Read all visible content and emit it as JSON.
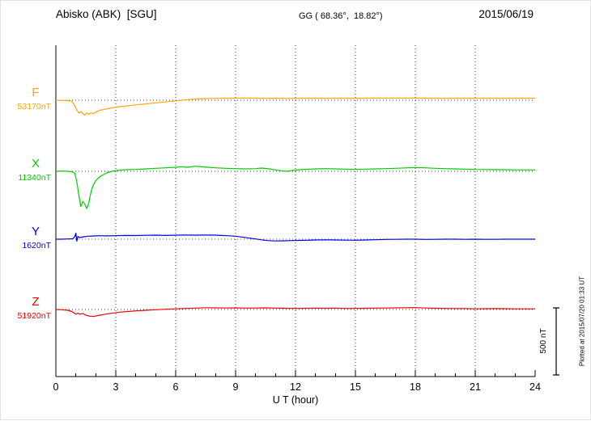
{
  "header": {
    "station": "Abisko (ABK)  [SGU]",
    "coords": "GG ( 68.36°,  18.82°)",
    "date": "2015/06/19"
  },
  "axis": {
    "xlabel": "U T (hour)"
  },
  "scale": {
    "label": "500 nT"
  },
  "footer_note": "Plotted at 2015/07/20 01:33 UT",
  "chart_data": {
    "type": "line",
    "title": "Abisko (ABK) [SGU] magnetogram",
    "date": "2015/06/19",
    "xlabel": "U T (hour)",
    "x_range": [
      0,
      24
    ],
    "x_ticks": [
      0,
      3,
      6,
      9,
      12,
      15,
      18,
      21,
      24
    ],
    "grid": "dotted vertical lines every 3 h, dotted horizontal baseline per component",
    "scale_bar_nT": 500,
    "y_unit": "nT offset from baseline",
    "series": [
      {
        "name": "F",
        "baseline_label": "53170nT",
        "color": "#FFA500",
        "points": [
          [
            0,
            0
          ],
          [
            0.3,
            -2
          ],
          [
            0.6,
            -3
          ],
          [
            0.8,
            -8
          ],
          [
            0.95,
            -40
          ],
          [
            1.05,
            -75
          ],
          [
            1.15,
            -95
          ],
          [
            1.25,
            -85
          ],
          [
            1.35,
            -100
          ],
          [
            1.45,
            -112
          ],
          [
            1.55,
            -95
          ],
          [
            1.65,
            -105
          ],
          [
            1.75,
            -95
          ],
          [
            1.9,
            -100
          ],
          [
            2.05,
            -85
          ],
          [
            2.2,
            -75
          ],
          [
            2.4,
            -70
          ],
          [
            2.7,
            -60
          ],
          [
            3.0,
            -52
          ],
          [
            3.4,
            -45
          ],
          [
            3.8,
            -38
          ],
          [
            4.2,
            -32
          ],
          [
            4.6,
            -26
          ],
          [
            5.0,
            -20
          ],
          [
            5.4,
            -14
          ],
          [
            5.8,
            -8
          ],
          [
            6.2,
            -2
          ],
          [
            6.6,
            4
          ],
          [
            7.0,
            9
          ],
          [
            7.5,
            12
          ],
          [
            8,
            14
          ],
          [
            8.5,
            15
          ],
          [
            9,
            15
          ],
          [
            9.5,
            16
          ],
          [
            10,
            15
          ],
          [
            10.5,
            14
          ],
          [
            11,
            15
          ],
          [
            11.5,
            13
          ],
          [
            12,
            14
          ],
          [
            12.5,
            15
          ],
          [
            13,
            15
          ],
          [
            13.5,
            14
          ],
          [
            14,
            15
          ],
          [
            14.5,
            15
          ],
          [
            15,
            14
          ],
          [
            15.5,
            15
          ],
          [
            16,
            16
          ],
          [
            16.5,
            15
          ],
          [
            17,
            16
          ],
          [
            17.5,
            15
          ],
          [
            18,
            16
          ],
          [
            18.5,
            15
          ],
          [
            19,
            15
          ],
          [
            19.5,
            14
          ],
          [
            20,
            15
          ],
          [
            20.5,
            15
          ],
          [
            21,
            14
          ],
          [
            21.5,
            15
          ],
          [
            22,
            15
          ],
          [
            22.5,
            14
          ],
          [
            23,
            15
          ],
          [
            23.5,
            15
          ],
          [
            24,
            15
          ]
        ]
      },
      {
        "name": "X",
        "baseline_label": "11340nT",
        "color": "#00CC00",
        "points": [
          [
            0,
            0
          ],
          [
            0.3,
            2
          ],
          [
            0.6,
            0
          ],
          [
            0.8,
            -3
          ],
          [
            0.95,
            -15
          ],
          [
            1.05,
            -80
          ],
          [
            1.15,
            -180
          ],
          [
            1.25,
            -262
          ],
          [
            1.35,
            -225
          ],
          [
            1.45,
            -245
          ],
          [
            1.55,
            -278
          ],
          [
            1.65,
            -235
          ],
          [
            1.75,
            -160
          ],
          [
            1.85,
            -110
          ],
          [
            2.0,
            -70
          ],
          [
            2.2,
            -40
          ],
          [
            2.5,
            -15
          ],
          [
            2.8,
            0
          ],
          [
            3.1,
            8
          ],
          [
            3.5,
            12
          ],
          [
            4,
            14
          ],
          [
            4.5,
            18
          ],
          [
            5,
            22
          ],
          [
            5.5,
            26
          ],
          [
            6,
            30
          ],
          [
            6.3,
            34
          ],
          [
            6.6,
            30
          ],
          [
            7,
            38
          ],
          [
            7.3,
            34
          ],
          [
            7.6,
            30
          ],
          [
            8,
            26
          ],
          [
            8.5,
            22
          ],
          [
            9,
            20
          ],
          [
            9.5,
            18
          ],
          [
            10,
            20
          ],
          [
            10.3,
            24
          ],
          [
            10.7,
            18
          ],
          [
            11,
            10
          ],
          [
            11.3,
            4
          ],
          [
            11.6,
            0
          ],
          [
            11.9,
            8
          ],
          [
            12.2,
            12
          ],
          [
            12.6,
            15
          ],
          [
            13,
            18
          ],
          [
            13.5,
            20
          ],
          [
            14,
            18
          ],
          [
            14.5,
            16
          ],
          [
            15,
            14
          ],
          [
            15.5,
            16
          ],
          [
            16,
            18
          ],
          [
            16.5,
            20
          ],
          [
            17,
            22
          ],
          [
            17.5,
            25
          ],
          [
            18,
            28
          ],
          [
            18.5,
            26
          ],
          [
            19,
            22
          ],
          [
            19.5,
            20
          ],
          [
            20,
            18
          ],
          [
            20.5,
            16
          ],
          [
            21,
            14
          ],
          [
            21.5,
            13
          ],
          [
            22,
            12
          ],
          [
            22.5,
            12
          ],
          [
            23,
            10
          ],
          [
            23.5,
            10
          ],
          [
            24,
            10
          ]
        ]
      },
      {
        "name": "Y",
        "baseline_label": "1620nT",
        "color": "#0000DD",
        "points": [
          [
            0,
            0
          ],
          [
            0.3,
            0
          ],
          [
            0.6,
            2
          ],
          [
            0.85,
            3
          ],
          [
            0.95,
            20
          ],
          [
            1.0,
            45
          ],
          [
            1.05,
            -15
          ],
          [
            1.1,
            20
          ],
          [
            1.2,
            12
          ],
          [
            1.4,
            18
          ],
          [
            1.6,
            22
          ],
          [
            1.9,
            24
          ],
          [
            2.2,
            26
          ],
          [
            2.5,
            25
          ],
          [
            3,
            26
          ],
          [
            3.5,
            28
          ],
          [
            4,
            27
          ],
          [
            4.5,
            29
          ],
          [
            5,
            30
          ],
          [
            5.5,
            28
          ],
          [
            6,
            30
          ],
          [
            6.5,
            31
          ],
          [
            7,
            30
          ],
          [
            7.5,
            31
          ],
          [
            8,
            30
          ],
          [
            8.3,
            28
          ],
          [
            8.6,
            26
          ],
          [
            9,
            22
          ],
          [
            9.3,
            16
          ],
          [
            9.6,
            10
          ],
          [
            10,
            2
          ],
          [
            10.3,
            -5
          ],
          [
            10.6,
            -10
          ],
          [
            11,
            -13
          ],
          [
            11.4,
            -12
          ],
          [
            11.8,
            -10
          ],
          [
            12.2,
            -9
          ],
          [
            12.6,
            -8
          ],
          [
            13,
            -6
          ],
          [
            13.5,
            -5
          ],
          [
            14,
            -6
          ],
          [
            14.5,
            -7
          ],
          [
            15,
            -8
          ],
          [
            15.5,
            -6
          ],
          [
            16,
            -4
          ],
          [
            16.5,
            -2
          ],
          [
            17,
            -1
          ],
          [
            17.5,
            0
          ],
          [
            18,
            0
          ],
          [
            18.5,
            -2
          ],
          [
            19,
            -1
          ],
          [
            19.5,
            0
          ],
          [
            20,
            0
          ],
          [
            20.5,
            -1
          ],
          [
            21,
            0
          ],
          [
            21.5,
            -1
          ],
          [
            22,
            -1
          ],
          [
            22.5,
            0
          ],
          [
            23,
            0
          ],
          [
            23.5,
            0
          ],
          [
            24,
            0
          ]
        ]
      },
      {
        "name": "Z",
        "baseline_label": "51920nT",
        "color": "#EE0000",
        "points": [
          [
            0,
            0
          ],
          [
            0.3,
            -2
          ],
          [
            0.6,
            -6
          ],
          [
            0.8,
            -15
          ],
          [
            1.0,
            -35
          ],
          [
            1.1,
            -28
          ],
          [
            1.2,
            -35
          ],
          [
            1.35,
            -30
          ],
          [
            1.5,
            -42
          ],
          [
            1.7,
            -50
          ],
          [
            1.9,
            -52
          ],
          [
            2.1,
            -45
          ],
          [
            2.3,
            -40
          ],
          [
            2.6,
            -32
          ],
          [
            2.9,
            -26
          ],
          [
            3.2,
            -20
          ],
          [
            3.6,
            -15
          ],
          [
            4,
            -10
          ],
          [
            4.5,
            -6
          ],
          [
            5,
            -2
          ],
          [
            5.5,
            2
          ],
          [
            6,
            5
          ],
          [
            6.5,
            8
          ],
          [
            7,
            10
          ],
          [
            7.5,
            13
          ],
          [
            8,
            12
          ],
          [
            8.5,
            11
          ],
          [
            9,
            12
          ],
          [
            9.5,
            10
          ],
          [
            10,
            11
          ],
          [
            10.5,
            12
          ],
          [
            11,
            10
          ],
          [
            11.5,
            9
          ],
          [
            12,
            8
          ],
          [
            12.5,
            9
          ],
          [
            13,
            10
          ],
          [
            13.5,
            9
          ],
          [
            14,
            10
          ],
          [
            14.5,
            8
          ],
          [
            15,
            8
          ],
          [
            15.5,
            9
          ],
          [
            16,
            10
          ],
          [
            16.5,
            11
          ],
          [
            17,
            12
          ],
          [
            17.5,
            13
          ],
          [
            18,
            14
          ],
          [
            18.5,
            11
          ],
          [
            19,
            9
          ],
          [
            19.5,
            8
          ],
          [
            20,
            7
          ],
          [
            20.5,
            7
          ],
          [
            21,
            5
          ],
          [
            21.5,
            6
          ],
          [
            22,
            7
          ],
          [
            22.5,
            6
          ],
          [
            23,
            5
          ],
          [
            23.5,
            5
          ],
          [
            24,
            5
          ]
        ]
      }
    ]
  }
}
